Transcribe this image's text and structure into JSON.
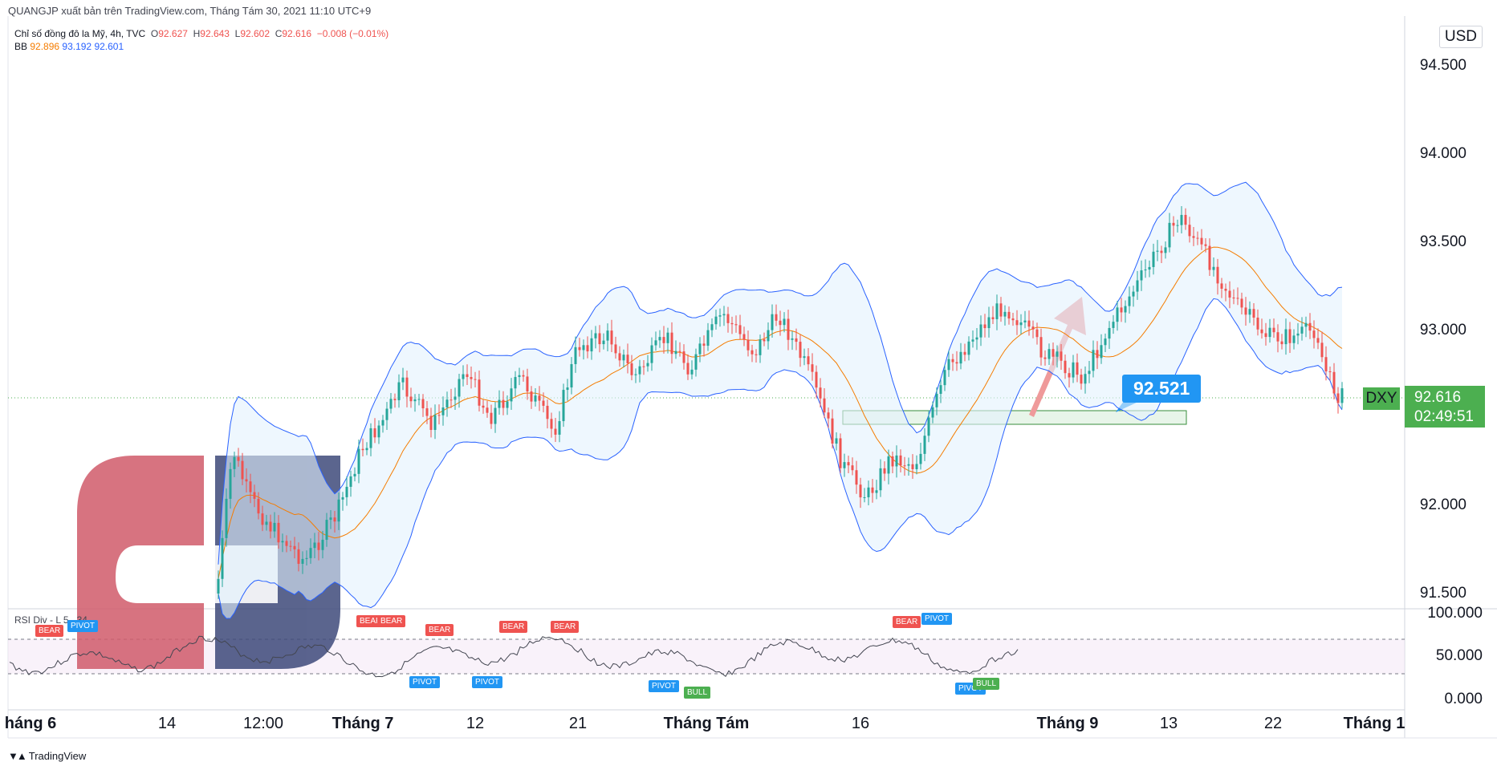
{
  "header": {
    "credit": "QUANGJP xuất bản trên TradingView.com, Tháng Tám 30, 2021 11:10 UTC+9"
  },
  "legend": {
    "symbol": "Chỉ số đồng đô la Mỹ, 4h, TVC",
    "open_label": "O",
    "open": "92.627",
    "high_label": "H",
    "high": "92.643",
    "low_label": "L",
    "low": "92.602",
    "close_label": "C",
    "close": "92.616",
    "change": "−0.008 (−0.01%)",
    "bb_label": "BB",
    "bb_basis": "92.896",
    "bb_upper": "93.192",
    "bb_lower": "92.601"
  },
  "price_axis": {
    "currency": "USD",
    "ticks": [
      "94.500",
      "94.000",
      "93.500",
      "93.000",
      "92.000",
      "91.500"
    ],
    "symbol_tag": "DXY",
    "last_price": "92.616",
    "countdown": "02:49:51"
  },
  "rsi_pane": {
    "label": "RSI Div - L 5",
    "suffix": "34",
    "ticks": [
      "100.000",
      "50.000",
      "0.000"
    ],
    "badges": [
      {
        "text": "BEAR",
        "kind": "bear"
      },
      {
        "text": "PIVOT",
        "kind": "pivot"
      },
      {
        "text": "BEAR",
        "kind": "bear"
      },
      {
        "text": "BEAR",
        "kind": "bear"
      },
      {
        "text": "BEAR",
        "kind": "bear"
      },
      {
        "text": "BEAR",
        "kind": "bear"
      },
      {
        "text": "BEAR",
        "kind": "bear"
      },
      {
        "text": "PIVOT",
        "kind": "pivot"
      },
      {
        "text": "PIVOT",
        "kind": "pivot"
      },
      {
        "text": "PIVOT",
        "kind": "pivot"
      },
      {
        "text": "BULL",
        "kind": "bull"
      },
      {
        "text": "BEAR",
        "kind": "bear"
      },
      {
        "text": "PIVOT",
        "kind": "pivot"
      },
      {
        "text": "PIVOT",
        "kind": "pivot"
      },
      {
        "text": "BULL",
        "kind": "bull"
      }
    ]
  },
  "time_axis": {
    "labels": [
      {
        "text": "háng 6",
        "bold": true
      },
      {
        "text": "14",
        "bold": false
      },
      {
        "text": "12:00",
        "bold": false
      },
      {
        "text": "Tháng 7",
        "bold": true
      },
      {
        "text": "12",
        "bold": false
      },
      {
        "text": "21",
        "bold": false
      },
      {
        "text": "Tháng Tám",
        "bold": true
      },
      {
        "text": "16",
        "bold": false
      },
      {
        "text": "Tháng 9",
        "bold": true
      },
      {
        "text": "13",
        "bold": false
      },
      {
        "text": "22",
        "bold": false
      },
      {
        "text": "Tháng 1",
        "bold": true
      }
    ]
  },
  "annotation": {
    "target_price": "92.521"
  },
  "footer": {
    "brand": "TradingView"
  },
  "colors": {
    "bull": "#26a69a",
    "bear": "#ef5350",
    "bb_band": "#2962ff",
    "bb_basis": "#f57c00",
    "accent": "#2196f3",
    "last_price": "#4caf50"
  }
}
